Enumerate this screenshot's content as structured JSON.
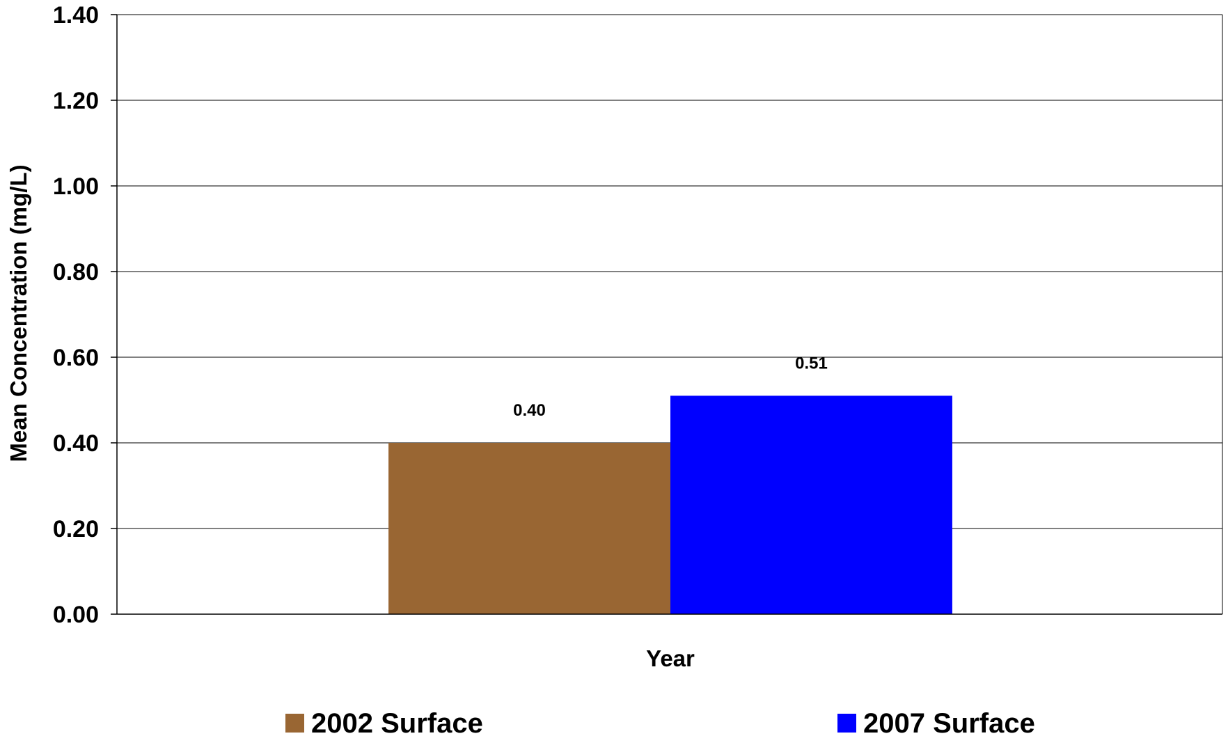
{
  "chart_data": {
    "type": "bar",
    "categories": [
      ""
    ],
    "series": [
      {
        "name": "2002 Surface",
        "values": [
          0.4
        ],
        "color": "#996633",
        "data_label": "0.40"
      },
      {
        "name": "2007 Surface",
        "values": [
          0.51
        ],
        "color": "#0000FF",
        "data_label": "0.51"
      }
    ],
    "title": "",
    "xlabel": "Year",
    "ylabel": "Mean Concentration (mg/L)",
    "ylim": [
      0,
      1.4
    ],
    "yticks": [
      0,
      0.2,
      0.4,
      0.6,
      0.8,
      1.0,
      1.2,
      1.4
    ],
    "ytick_labels": [
      "0.00",
      "0.20",
      "0.40",
      "0.60",
      "0.80",
      "1.00",
      "1.20",
      "1.40"
    ],
    "grid": true,
    "legend_position": "bottom"
  }
}
